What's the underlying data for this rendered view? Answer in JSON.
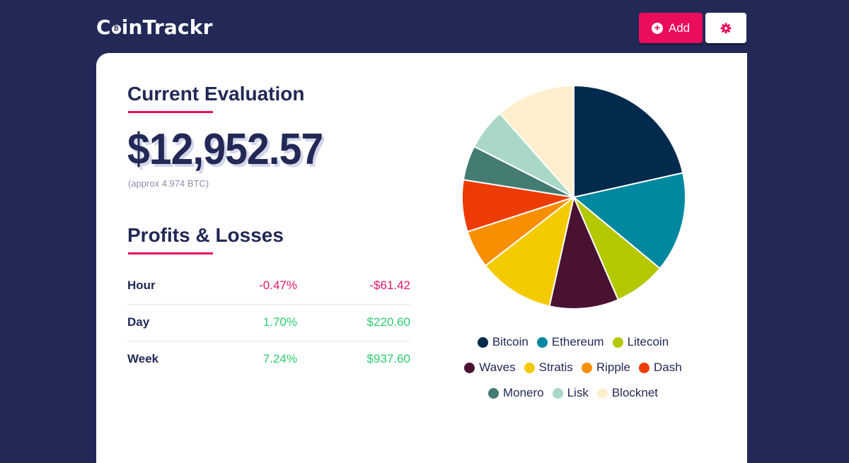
{
  "header": {
    "logo": {
      "prefix": "C",
      "coin_symbol": "₿",
      "suffix": "inTrackr"
    },
    "add_button_label": "Add",
    "add_icon": "plus-circle-icon",
    "settings_icon": "gear-icon"
  },
  "evaluation": {
    "title": "Current Evaluation",
    "value": "$12,952.57",
    "approx": "(approx 4.974 BTC)"
  },
  "profits": {
    "title": "Profits & Losses",
    "rows": [
      {
        "label": "Hour",
        "percent": "-0.47%",
        "amount": "-$61.42",
        "trend": "negative"
      },
      {
        "label": "Day",
        "percent": "1.70%",
        "amount": "$220.60",
        "trend": "positive"
      },
      {
        "label": "Week",
        "percent": "7.24%",
        "amount": "$937.60",
        "trend": "positive"
      }
    ]
  },
  "colors": {
    "background": "#222956",
    "accent": "#ea0d5c",
    "positive": "#2ecc71",
    "negative": "#e0176a"
  },
  "chart_data": {
    "type": "pie",
    "legend_position": "bottom",
    "series": [
      {
        "name": "Bitcoin",
        "value": 21.5,
        "color": "#022a4d"
      },
      {
        "name": "Ethereum",
        "value": 14.5,
        "color": "#0088a0"
      },
      {
        "name": "Litecoin",
        "value": 7.5,
        "color": "#b4c800"
      },
      {
        "name": "Waves",
        "value": 10,
        "color": "#4a1232"
      },
      {
        "name": "Stratis",
        "value": 11,
        "color": "#f4cb00"
      },
      {
        "name": "Ripple",
        "value": 5.5,
        "color": "#f88f00"
      },
      {
        "name": "Dash",
        "value": 7.5,
        "color": "#ec3c03"
      },
      {
        "name": "Monero",
        "value": 5,
        "color": "#447b73"
      },
      {
        "name": "Lisk",
        "value": 6,
        "color": "#a9d9c6"
      },
      {
        "name": "Blocknet",
        "value": 11.5,
        "color": "#fdefcd"
      }
    ]
  }
}
